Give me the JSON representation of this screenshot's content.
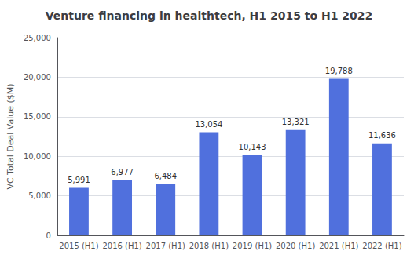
{
  "chart_data": {
    "type": "bar",
    "title": "Venture financing in healthtech, H1 2015 to H1 2022",
    "ylabel": "VC Total Deal Value ($M)",
    "categories": [
      "2015 (H1)",
      "2016 (H1)",
      "2017 (H1)",
      "2018 (H1)",
      "2019 (H1)",
      "2020 (H1)",
      "2021 (H1)",
      "2022 (H1)"
    ],
    "values": [
      5991,
      6977,
      6484,
      13054,
      10143,
      13321,
      19788,
      11636
    ],
    "value_labels": [
      "5,991",
      "6,977",
      "6,484",
      "13,054",
      "10,143",
      "13,321",
      "19,788",
      "11,636"
    ],
    "ylim": [
      0,
      25000
    ],
    "yticks": [
      0,
      {
        "value": 5000,
        "label": "5,000"
      },
      {
        "value": 10000,
        "label": "10,000"
      },
      {
        "value": 15000,
        "label": "15,000"
      },
      {
        "value": 20000,
        "label": "20,000"
      },
      {
        "value": 25000,
        "label": "25,000"
      }
    ],
    "grid": true,
    "data_labels": true
  }
}
